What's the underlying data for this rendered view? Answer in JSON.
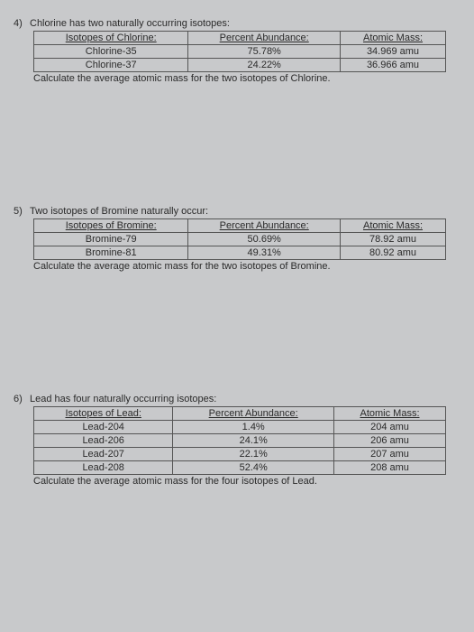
{
  "questions": [
    {
      "number": "4)",
      "prompt": "Chlorine has two naturally occurring isotopes:",
      "headers": {
        "col1": "Isotopes of Chlorine:",
        "col2": "Percent Abundance:",
        "col3": "Atomic Mass:"
      },
      "rows": [
        {
          "isotope": "Chlorine-35",
          "abundance": "75.78%",
          "mass": "34.969 amu"
        },
        {
          "isotope": "Chlorine-37",
          "abundance": "24.22%",
          "mass": "36.966 amu"
        }
      ],
      "calc": "Calculate the average atomic mass for the two isotopes of Chlorine."
    },
    {
      "number": "5)",
      "prompt": "Two isotopes of Bromine naturally occur:",
      "headers": {
        "col1": "Isotopes of Bromine:",
        "col2": "Percent Abundance:",
        "col3": "Atomic Mass:"
      },
      "rows": [
        {
          "isotope": "Bromine-79",
          "abundance": "50.69%",
          "mass": "78.92 amu"
        },
        {
          "isotope": "Bromine-81",
          "abundance": "49.31%",
          "mass": "80.92 amu"
        }
      ],
      "calc": "Calculate the average atomic mass for the two isotopes of Bromine."
    },
    {
      "number": "6)",
      "prompt": "Lead has four naturally occurring isotopes:",
      "headers": {
        "col1": "Isotopes of Lead:",
        "col2": "Percent Abundance:",
        "col3": "Atomic Mass:"
      },
      "rows": [
        {
          "isotope": "Lead-204",
          "abundance": "1.4%",
          "mass": "204 amu"
        },
        {
          "isotope": "Lead-206",
          "abundance": "24.1%",
          "mass": "206 amu"
        },
        {
          "isotope": "Lead-207",
          "abundance": "22.1%",
          "mass": "207 amu"
        },
        {
          "isotope": "Lead-208",
          "abundance": "52.4%",
          "mass": "208 amu"
        }
      ],
      "calc": "Calculate the average atomic mass for the four isotopes of Lead."
    }
  ]
}
